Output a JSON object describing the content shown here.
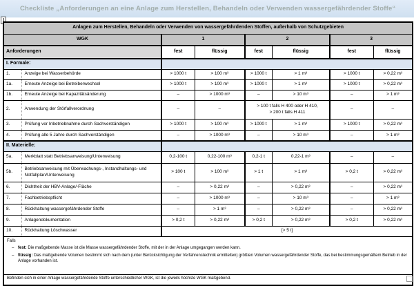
{
  "titlebar": {
    "title": "Checkliste „Anforderungen an eine Anlage zum Herstellen, Behandeln oder Verwenden wassergefährdender Stoffe“"
  },
  "table": {
    "caption": "Anlagen zum Herstellen, Behandeln oder Verwenden von wassergefährdenden Stoffen, außerhalb von Schutzgebieten",
    "wgk_label": "WGK",
    "wgk_groups": [
      "1",
      "2",
      "3"
    ],
    "anforderungen_label": "Anforderungen",
    "phase_labels": [
      "fest",
      "flüssig",
      "fest",
      "flüssig",
      "fest",
      "flüssig"
    ],
    "rows": [
      {
        "type": "section",
        "label": "I. Formale:"
      },
      {
        "type": "item",
        "num": "1.",
        "label": "Anzeige bei Wasserbehörde",
        "cells": [
          {
            "v": "> 1000 t"
          },
          {
            "v": "> 100 m³"
          },
          {
            "v": "> 1000 t"
          },
          {
            "v": "> 1 m³"
          },
          {
            "v": "> 1000 t"
          },
          {
            "v": "> 0,22 m³"
          }
        ]
      },
      {
        "type": "item",
        "num": "1a.",
        "label": "Erneute Anzeige bei Betreiberwechsel",
        "cells": [
          {
            "v": "> 1000 t"
          },
          {
            "v": "> 100 m³"
          },
          {
            "v": "> 1000 t"
          },
          {
            "v": "> 1 m³"
          },
          {
            "v": "> 1000 t"
          },
          {
            "v": "> 0,22 m³"
          }
        ]
      },
      {
        "type": "item",
        "num": "1b.",
        "label": "Erneute Anzeige bei Kapazitätsänderung",
        "cells": [
          {
            "v": "–"
          },
          {
            "v": "> 1000 m³"
          },
          {
            "v": "–"
          },
          {
            "v": "> 10 m³"
          },
          {
            "v": "–"
          },
          {
            "v": "> 1 m³"
          }
        ]
      },
      {
        "type": "item",
        "num": "2.",
        "label": "Anwendung der Störfallverordnung",
        "cells": [
          {
            "v": "–"
          },
          {
            "v": "–"
          },
          {
            "v": "> 100 t falls H 400 oder H 410,\n> 200 t falls H 411",
            "span": 2
          },
          {
            "v": "–"
          },
          {
            "v": "–"
          }
        ]
      },
      {
        "type": "item",
        "num": "3.",
        "label": "Prüfung vor Inbetriebnahme durch Sachverständigen",
        "cells": [
          {
            "v": "> 1000 t"
          },
          {
            "v": "> 100 m³"
          },
          {
            "v": "> 1000 t"
          },
          {
            "v": "> 1 m³"
          },
          {
            "v": "> 1000 t"
          },
          {
            "v": "> 0,22 m³"
          }
        ]
      },
      {
        "type": "item",
        "num": "4.",
        "label": "Prüfung alle 5 Jahre durch Sachverständigen",
        "cells": [
          {
            "v": "–"
          },
          {
            "v": "> 1000 m³"
          },
          {
            "v": "–"
          },
          {
            "v": "> 10 m³"
          },
          {
            "v": "–"
          },
          {
            "v": "> 1 m³"
          }
        ]
      },
      {
        "type": "section",
        "label": "II. Materielle:"
      },
      {
        "type": "item",
        "num": "5a.",
        "label": "Merkblatt statt Betriebsanweisung/Unterweisung",
        "cells": [
          {
            "v": "0,2-100 t"
          },
          {
            "v": "0,22-100 m³"
          },
          {
            "v": "0,2-1 t"
          },
          {
            "v": "0,22-1 m³"
          },
          {
            "v": "–"
          },
          {
            "v": "–"
          }
        ]
      },
      {
        "type": "item",
        "num": "5b.",
        "label": "Betriebsanweisung mit Überwachungs-, Instandhaltungs- und Notfallplan/Unterweisung",
        "cells": [
          {
            "v": "> 100 t"
          },
          {
            "v": "> 100 m³"
          },
          {
            "v": "> 1 t"
          },
          {
            "v": "> 1 m³"
          },
          {
            "v": "> 0,2 t"
          },
          {
            "v": "> 0,22 m³"
          }
        ]
      },
      {
        "type": "item",
        "num": "6.",
        "label": "Dichtheit der HBV-Anlage/-Fläche",
        "cells": [
          {
            "v": "–"
          },
          {
            "v": "> 0,22 m³"
          },
          {
            "v": "–"
          },
          {
            "v": "> 0,22 m³"
          },
          {
            "v": "–"
          },
          {
            "v": "> 0,22 m³"
          }
        ]
      },
      {
        "type": "item",
        "num": "7.",
        "label": "Fachbetriebspflicht",
        "cells": [
          {
            "v": "–"
          },
          {
            "v": "> 1000 m³"
          },
          {
            "v": "–"
          },
          {
            "v": "> 10 m³"
          },
          {
            "v": "–"
          },
          {
            "v": "> 1 m³"
          }
        ]
      },
      {
        "type": "item",
        "num": "8.",
        "label": "Rückhaltung wassergefährdender Stoffe",
        "cells": [
          {
            "v": "–"
          },
          {
            "v": "> 1 m³"
          },
          {
            "v": "–"
          },
          {
            "v": "> 0,22 m³"
          },
          {
            "v": "–"
          },
          {
            "v": "> 0,22 m³"
          }
        ]
      },
      {
        "type": "item",
        "num": "9.",
        "label": "Anlagendokumentation",
        "cells": [
          {
            "v": "> 0,2 t"
          },
          {
            "v": "> 0,22 m³"
          },
          {
            "v": "> 0,2 t"
          },
          {
            "v": "> 0,22 m³"
          },
          {
            "v": "> 0,2 t"
          },
          {
            "v": "> 0,22 m³"
          }
        ]
      },
      {
        "type": "item",
        "num": "10.",
        "label": "Rückhaltung Löschwasser",
        "cells": [
          {
            "v": "[> 5 t]",
            "span": 6
          }
        ]
      }
    ]
  },
  "footnotes": {
    "intro": "Falls",
    "marker": "–",
    "items": [
      {
        "term": "fest:",
        "text": "Die maßgebende Masse ist die Masse wassergefährdender Stoffe, mit der in der Anlage umgegangen werden kann."
      },
      {
        "term": "flüssig:",
        "text": "Das maßgebende Volumen bestimmt sich nach dem (unter Berücksichtigung der Verfahrenstechnik ermittelten) größten Volumen wassergefährdender Stoffe, das bei bestimmungsgemäßem Betrieb in der Anlage vorhanden ist."
      }
    ],
    "note": "Befinden sich in einer Anlage wassergefährdende Stoffe unterschiedlicher WGK, ist die jeweils höchste WGK maßgebend."
  }
}
